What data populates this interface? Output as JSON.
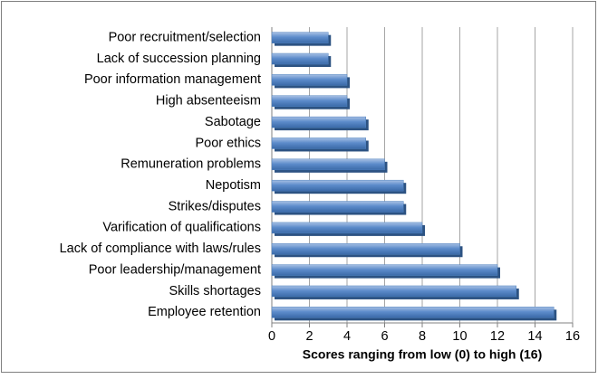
{
  "chart_data": {
    "type": "bar",
    "orientation": "horizontal",
    "x_label": "Scores ranging from low (0) to high (16)",
    "categories": [
      "Poor recruitment/selection",
      "Lack of succession planning",
      "Poor information management",
      "High absenteeism",
      "Sabotage",
      "Poor ethics",
      "Remuneration problems",
      "Nepotism",
      "Strikes/disputes",
      "Varification of qualifications",
      "Lack of compliance with laws/rules",
      "Poor leadership/management",
      "Skills shortages",
      "Employee retention"
    ],
    "values": [
      3,
      3,
      4,
      4,
      5,
      5,
      6,
      7,
      7,
      8,
      10,
      12,
      13,
      15
    ],
    "color": "#4f81bd",
    "xlim": [
      0,
      16
    ],
    "xticks": [
      0,
      2,
      4,
      6,
      8,
      10,
      12,
      14,
      16
    ],
    "grid": true
  }
}
